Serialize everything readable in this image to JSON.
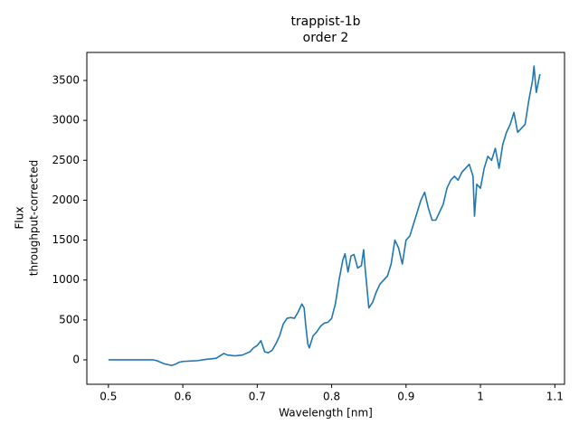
{
  "chart_data": {
    "type": "line",
    "title": [
      "trappist-1b",
      "order 2"
    ],
    "xlabel": "Wavelength [nm]",
    "ylabel": [
      "Flux",
      "throughput-corrected"
    ],
    "xlim": [
      0.471,
      1.113
    ],
    "ylim": [
      -306,
      3851
    ],
    "xticks": [
      0.5,
      0.6,
      0.7,
      0.8,
      0.9,
      1.0,
      1.1
    ],
    "yticks": [
      0,
      500,
      1000,
      1500,
      2000,
      2500,
      3000,
      3500
    ],
    "grid": false,
    "series": [
      {
        "color": "#1f77b4",
        "x": [
          0.5,
          0.52,
          0.54,
          0.56,
          0.565,
          0.57,
          0.575,
          0.58,
          0.585,
          0.59,
          0.595,
          0.6,
          0.61,
          0.62,
          0.63,
          0.64,
          0.645,
          0.65,
          0.655,
          0.66,
          0.67,
          0.68,
          0.69,
          0.695,
          0.7,
          0.705,
          0.71,
          0.715,
          0.72,
          0.725,
          0.73,
          0.735,
          0.74,
          0.745,
          0.75,
          0.755,
          0.76,
          0.763,
          0.765,
          0.768,
          0.77,
          0.775,
          0.78,
          0.785,
          0.79,
          0.795,
          0.8,
          0.805,
          0.81,
          0.815,
          0.818,
          0.822,
          0.826,
          0.83,
          0.835,
          0.84,
          0.843,
          0.845,
          0.85,
          0.855,
          0.86,
          0.865,
          0.87,
          0.875,
          0.88,
          0.885,
          0.89,
          0.895,
          0.9,
          0.905,
          0.91,
          0.915,
          0.92,
          0.925,
          0.93,
          0.935,
          0.94,
          0.945,
          0.95,
          0.955,
          0.96,
          0.965,
          0.97,
          0.975,
          0.98,
          0.985,
          0.99,
          0.992,
          0.995,
          1.0,
          1.005,
          1.01,
          1.015,
          1.02,
          1.025,
          1.03,
          1.035,
          1.04,
          1.045,
          1.05,
          1.055,
          1.06,
          1.065,
          1.07,
          1.072,
          1.075,
          1.08
        ],
        "values": [
          0,
          0,
          0,
          0,
          -10,
          -30,
          -50,
          -60,
          -70,
          -55,
          -30,
          -20,
          -15,
          -10,
          5,
          15,
          20,
          50,
          80,
          60,
          50,
          60,
          100,
          150,
          180,
          240,
          100,
          90,
          120,
          200,
          300,
          450,
          520,
          530,
          520,
          600,
          700,
          650,
          450,
          200,
          150,
          300,
          350,
          420,
          460,
          470,
          520,
          700,
          1000,
          1250,
          1330,
          1100,
          1300,
          1320,
          1150,
          1180,
          1380,
          1150,
          650,
          720,
          850,
          950,
          1000,
          1050,
          1200,
          1500,
          1400,
          1200,
          1500,
          1550,
          1700,
          1850,
          2000,
          2100,
          1900,
          1750,
          1750,
          1850,
          1950,
          2150,
          2250,
          2300,
          2250,
          2350,
          2400,
          2450,
          2300,
          1800,
          2200,
          2150,
          2400,
          2550,
          2500,
          2650,
          2400,
          2700,
          2850,
          2950,
          3100,
          2850,
          2900,
          2950,
          3250,
          3500,
          3680,
          3350,
          3580
        ]
      }
    ]
  }
}
